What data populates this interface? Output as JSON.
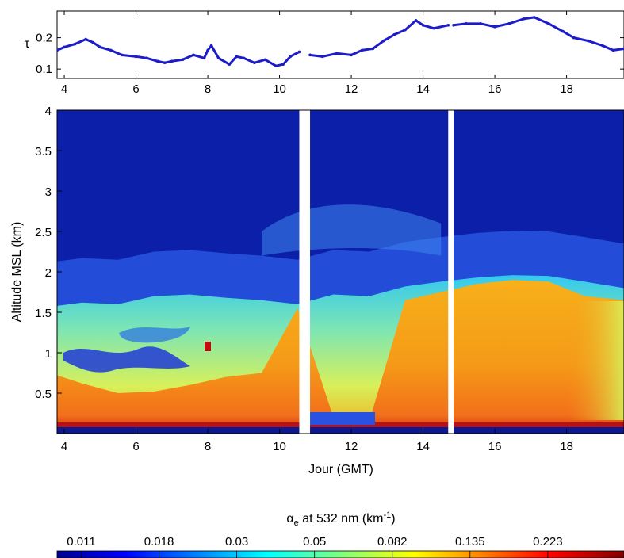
{
  "chart_data": [
    {
      "type": "line",
      "panel": "top",
      "ylabel": "τ",
      "xlim": [
        3.8,
        19.6
      ],
      "ylim": [
        0.07,
        0.285
      ],
      "xticks": [
        "4",
        "6",
        "8",
        "10",
        "12",
        "14",
        "16",
        "18"
      ],
      "yticks": [
        "0.1",
        "0.2"
      ],
      "xtick_values": [
        4,
        6,
        8,
        10,
        12,
        14,
        16,
        18
      ],
      "ytick_values": [
        0.1,
        0.2
      ],
      "line_color": "#1c1cc8",
      "gaps": [
        [
          10.55,
          10.85
        ],
        [
          14.7,
          14.85
        ]
      ],
      "series": [
        {
          "x": [
            3.8,
            4.0,
            4.3,
            4.6,
            4.8,
            5.0,
            5.3,
            5.6,
            6.0,
            6.3,
            6.6,
            6.8,
            7.0,
            7.3,
            7.6,
            7.9,
            8.0,
            8.1,
            8.3,
            8.6,
            8.8,
            9.0,
            9.3,
            9.6,
            9.9,
            10.1,
            10.3,
            10.55,
            10.85,
            11.2,
            11.6,
            12.0,
            12.3,
            12.6,
            12.9,
            13.2,
            13.5,
            13.8,
            14.0,
            14.3,
            14.7,
            14.85,
            15.2,
            15.6,
            16.0,
            16.4,
            16.8,
            17.1,
            17.5,
            17.9,
            18.2,
            18.6,
            19.0,
            19.3,
            19.6
          ],
          "values": [
            0.16,
            0.17,
            0.18,
            0.195,
            0.185,
            0.17,
            0.16,
            0.145,
            0.14,
            0.135,
            0.125,
            0.12,
            0.125,
            0.13,
            0.145,
            0.135,
            0.16,
            0.175,
            0.135,
            0.115,
            0.14,
            0.135,
            0.12,
            0.13,
            0.11,
            0.115,
            0.14,
            0.155,
            0.145,
            0.14,
            0.15,
            0.145,
            0.16,
            0.165,
            0.19,
            0.21,
            0.225,
            0.255,
            0.24,
            0.23,
            0.24,
            0.24,
            0.245,
            0.245,
            0.235,
            0.245,
            0.26,
            0.265,
            0.245,
            0.22,
            0.2,
            0.19,
            0.175,
            0.16,
            0.165
          ]
        }
      ]
    },
    {
      "type": "heatmap",
      "panel": "main",
      "xlabel": "Jour (GMT)",
      "ylabel": "Altitude MSL (km)",
      "xlim": [
        3.8,
        19.6
      ],
      "ylim": [
        0.0,
        4.0
      ],
      "xticks": [
        "4",
        "6",
        "8",
        "10",
        "12",
        "14",
        "16",
        "18"
      ],
      "yticks": [
        "0.5",
        "1",
        "1.5",
        "2",
        "2.5",
        "3",
        "3.5",
        "4"
      ],
      "xtick_values": [
        4,
        6,
        8,
        10,
        12,
        14,
        16,
        18
      ],
      "ytick_values": [
        0.5,
        1,
        1.5,
        2,
        2.5,
        3,
        3.5,
        4
      ],
      "gaps": [
        [
          10.55,
          10.85
        ],
        [
          14.7,
          14.85
        ]
      ],
      "layer_tops_km": {
        "x": [
          3.8,
          4.5,
          5.5,
          6.5,
          7.5,
          8.5,
          9.5,
          10.5,
          11.5,
          12.5,
          13.5,
          14.5,
          15.5,
          16.5,
          17.5,
          18.5,
          19.6
        ],
        "aerosol_top": [
          1.58,
          1.62,
          1.6,
          1.7,
          1.72,
          1.68,
          1.65,
          1.6,
          1.72,
          1.7,
          1.82,
          1.88,
          1.93,
          1.96,
          1.95,
          1.88,
          1.8
        ],
        "dense_top": [
          0.72,
          0.62,
          0.5,
          0.52,
          0.6,
          0.7,
          0.75,
          1.55,
          0.2,
          0.15,
          1.65,
          1.75,
          1.85,
          1.9,
          1.88,
          1.7,
          1.65
        ]
      }
    }
  ],
  "colorbar": {
    "title_symbol": "α",
    "title_subscript": "e",
    "title_rest": " at 532 nm (km",
    "title_superscript": "-1",
    "title_close": ")",
    "tick_labels": [
      "0.011",
      "0.018",
      "0.03",
      "0.05",
      "0.082",
      "0.135",
      "0.223"
    ],
    "colors": [
      "#00008f",
      "#0000ff",
      "#0080ff",
      "#00ffff",
      "#80ff80",
      "#ffff00",
      "#ff8000",
      "#ff0000",
      "#800000"
    ]
  }
}
